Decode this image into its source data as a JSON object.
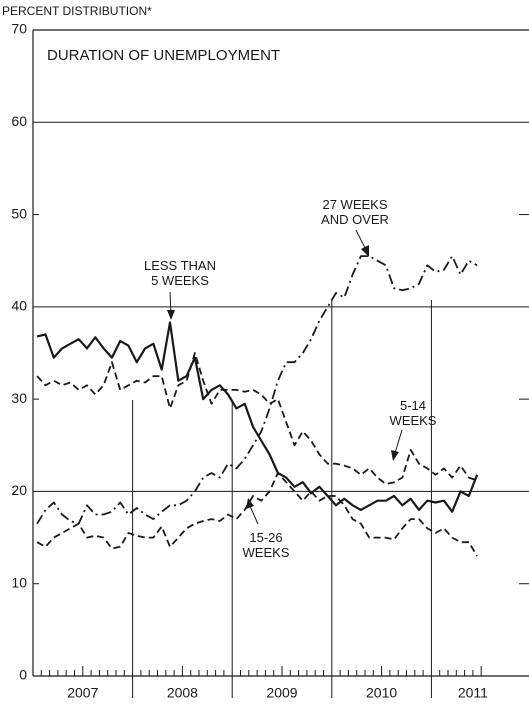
{
  "chart_data": {
    "type": "line",
    "title": "DURATION OF UNEMPLOYMENT",
    "y_label": "PERCENT DISTRIBUTION*",
    "categories": [
      null,
      null,
      null,
      null,
      null,
      null,
      "2007",
      null,
      null,
      null,
      null,
      null,
      null,
      null,
      null,
      null,
      null,
      null,
      "2008",
      null,
      null,
      null,
      null,
      null,
      null,
      null,
      null,
      null,
      null,
      null,
      "2009",
      null,
      null,
      null,
      null,
      null,
      null,
      null,
      null,
      null,
      null,
      null,
      "2010",
      null,
      null,
      null,
      null,
      null,
      null,
      null,
      null,
      null,
      null,
      "2011"
    ],
    "ylim": [
      0,
      70
    ],
    "yticks": [
      0,
      10,
      20,
      30,
      40,
      50,
      60,
      70
    ],
    "series": [
      {
        "name": "LESS THAN 5 WEEKS",
        "color": "#1a1a1a",
        "style": "solid",
        "values": [
          36.8,
          37,
          34.5,
          35.5,
          36,
          36.5,
          35.5,
          36.7,
          35.5,
          34.5,
          36.3,
          35.8,
          34,
          35.5,
          36,
          33.2,
          38.3,
          32,
          32.5,
          34.5,
          30,
          31,
          31.5,
          30.5,
          29,
          29.5,
          27,
          25.5,
          24,
          22,
          21.5,
          20.5,
          21,
          19.8,
          20.5,
          19.5,
          18.5,
          19.2,
          18.5,
          18,
          18.5,
          19,
          19,
          19.5,
          18.5,
          19.2,
          18,
          19,
          18.8,
          19,
          17.8,
          20,
          19.5,
          21.8
        ]
      },
      {
        "name": "5-14 WEEKS",
        "color": "#1a1a1a",
        "style": "dashed",
        "values": [
          32.5,
          31.5,
          32,
          31.5,
          31.8,
          31,
          31.5,
          30.5,
          31.5,
          34,
          31,
          31.5,
          32,
          31.8,
          32.5,
          32.5,
          29,
          31.5,
          32,
          35,
          32,
          29.5,
          31,
          31,
          31,
          30.8,
          31,
          30.5,
          29.5,
          30,
          27.5,
          25,
          26.5,
          25.5,
          24,
          23,
          23,
          22.8,
          22.5,
          21.8,
          22.5,
          21.5,
          20.8,
          21,
          21.5,
          24.5,
          23,
          22.5,
          21.8,
          22.5,
          21.5,
          22.8,
          21.5,
          21.2
        ]
      },
      {
        "name": "15-26 WEEKS",
        "color": "#1a1a1a",
        "style": "dashed",
        "values": [
          14.5,
          14,
          15,
          15.5,
          16,
          16.5,
          15,
          15.2,
          15,
          13.8,
          14,
          15.5,
          15.2,
          15,
          15,
          16.2,
          14,
          15,
          16,
          16.5,
          16.8,
          17,
          16.8,
          17.5,
          17,
          18,
          19.5,
          19,
          20,
          22,
          21,
          20,
          19,
          20,
          19,
          19.5,
          19.5,
          18.5,
          17,
          16.5,
          15,
          15,
          15,
          14.8,
          16,
          17,
          17,
          16,
          15.5,
          16,
          15,
          14.5,
          14.5,
          13
        ]
      },
      {
        "name": "27 WEEKS AND OVER",
        "color": "#1a1a1a",
        "style": "dash-dot",
        "values": [
          16.5,
          18,
          18.8,
          17.5,
          16.8,
          16.5,
          18.5,
          17.5,
          17.5,
          17.8,
          18.8,
          17.5,
          18.2,
          17.5,
          17,
          17.8,
          18.5,
          18.5,
          19,
          20,
          21.5,
          22,
          21.5,
          23,
          22.5,
          23.5,
          25,
          26.5,
          29,
          32,
          34,
          34,
          35,
          36.5,
          38.5,
          40,
          41.5,
          41,
          43.5,
          45.5,
          45.5,
          45,
          44.5,
          42,
          41.8,
          42,
          42.5,
          44.5,
          43.8,
          44,
          45.5,
          43.5,
          45,
          44.5
        ]
      }
    ]
  }
}
